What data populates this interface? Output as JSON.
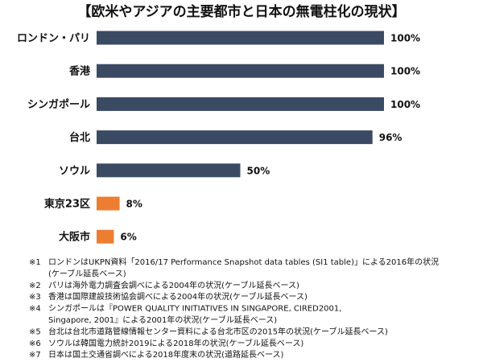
{
  "chart_data": {
    "type": "bar",
    "orientation": "horizontal",
    "title": "【欧米やアジアの主要都市と日本の無電柱化の現状】",
    "categories": [
      "ロンドン・パリ",
      "香港",
      "シンガポール",
      "台北",
      "ソウル",
      "東京23区",
      "大阪市"
    ],
    "values": [
      100,
      100,
      100,
      96,
      50,
      8,
      6
    ],
    "value_labels": [
      "100%",
      "100%",
      "100%",
      "96%",
      "50%",
      "8%",
      "6%"
    ],
    "colors": [
      "#3b4a63",
      "#3b4a63",
      "#3b4a63",
      "#3b4a63",
      "#3b4a63",
      "#ed7d31",
      "#ed7d31"
    ]
  },
  "footnotes": [
    {
      "marker": "※1",
      "lines": [
        "ロンドンはUKPN資料「2016/17 Performance Snapshot data tables (SI1 table)」による2016年の状況",
        "(ケーブル延長ベース)"
      ]
    },
    {
      "marker": "※2",
      "lines": [
        "パリは海外電力調査会調べによる2004年の状況(ケーブル延長ベース)"
      ]
    },
    {
      "marker": "※3",
      "lines": [
        "香港は国際建設技術協会調べによる2004年の状況(ケーブル延長ベース)"
      ]
    },
    {
      "marker": "※4",
      "lines": [
        "シンガポールは『POWER QUALITY INITIATIVES IN SINGAPORE, CIRED2001,",
        "Singapore, 2001』による2001年の状況(ケーブル延長ベース)"
      ]
    },
    {
      "marker": "※5",
      "lines": [
        "台北は台北市道路管線情報センター資料による台北市区の2015年の状況(ケーブル延長ベース)"
      ]
    },
    {
      "marker": "※6",
      "lines": [
        "ソウルは韓国電力統計2019による2018年の状況(ケーブル延長ベース)"
      ]
    },
    {
      "marker": "※7",
      "lines": [
        "日本は国土交通省調べによる2018年度末の状況(道路延長ベース)"
      ]
    }
  ]
}
